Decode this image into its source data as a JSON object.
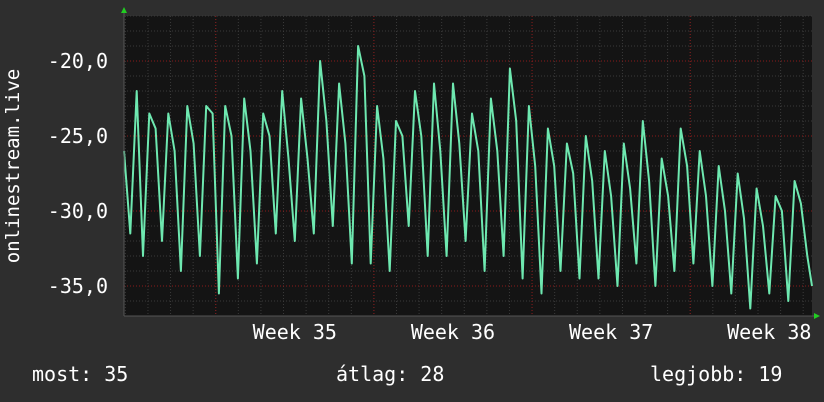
{
  "side_label": "onlinestream.live",
  "colors": {
    "background": "#2e2e2e",
    "plot_background": "#141414",
    "line": "#6ee8b0",
    "grid_major": "#8a1a1a",
    "grid_minor": "#3a3a3a",
    "arrow": "#22cc22",
    "text": "#ffffff"
  },
  "footer": {
    "now": "most: 35",
    "avg": "átlag: 28",
    "best": "legjobb: 19"
  },
  "chart_data": {
    "type": "line",
    "title": "",
    "xlabel": "",
    "ylabel": "onlinestream.live",
    "x_tick_labels": [
      "Week 35",
      "Week 36",
      "Week 37",
      "Week 38"
    ],
    "y_tick_labels": [
      "-20,0",
      "-25,0",
      "-30,0",
      "-35,0"
    ],
    "y_ticks": [
      -20,
      -25,
      -30,
      -35
    ],
    "ylim": [
      -37,
      -17
    ],
    "xlim": [
      34.42,
      38.77
    ],
    "grid": true,
    "series": [
      {
        "name": "",
        "x": [
          34.42,
          34.46,
          34.5,
          34.54,
          34.58,
          34.62,
          34.66,
          34.7,
          34.74,
          34.78,
          34.82,
          34.86,
          34.9,
          34.94,
          34.98,
          35.02,
          35.06,
          35.1,
          35.14,
          35.18,
          35.22,
          35.26,
          35.3,
          35.34,
          35.38,
          35.42,
          35.46,
          35.5,
          35.54,
          35.58,
          35.62,
          35.66,
          35.7,
          35.74,
          35.78,
          35.82,
          35.86,
          35.9,
          35.94,
          35.98,
          36.02,
          36.06,
          36.1,
          36.14,
          36.18,
          36.22,
          36.26,
          36.3,
          36.34,
          36.38,
          36.42,
          36.46,
          36.5,
          36.54,
          36.58,
          36.62,
          36.66,
          36.7,
          36.74,
          36.78,
          36.82,
          36.86,
          36.9,
          36.94,
          36.98,
          37.02,
          37.06,
          37.1,
          37.14,
          37.18,
          37.22,
          37.26,
          37.3,
          37.34,
          37.38,
          37.42,
          37.46,
          37.5,
          37.54,
          37.58,
          37.62,
          37.66,
          37.7,
          37.74,
          37.78,
          37.82,
          37.86,
          37.9,
          37.94,
          37.98,
          38.02,
          38.06,
          38.1,
          38.14,
          38.18,
          38.22,
          38.26,
          38.3,
          38.34,
          38.38,
          38.42,
          38.46,
          38.5,
          38.54,
          38.58,
          38.62,
          38.66,
          38.7,
          38.74,
          38.77
        ],
        "y": [
          -26,
          -31.5,
          -22,
          -33,
          -23.5,
          -24.5,
          -32,
          -23.5,
          -26,
          -34,
          -23,
          -25.5,
          -33,
          -23,
          -23.5,
          -35.5,
          -23,
          -25,
          -34.5,
          -22.5,
          -26,
          -33.5,
          -23.5,
          -25,
          -31.5,
          -22,
          -26.5,
          -32,
          -22.5,
          -26.5,
          -31.5,
          -20,
          -24,
          -31,
          -21.5,
          -25.5,
          -33.5,
          -19,
          -21,
          -33.5,
          -23,
          -26.5,
          -34,
          -24,
          -25,
          -31,
          -22,
          -25,
          -33,
          -21.5,
          -26,
          -33,
          -21.5,
          -25.5,
          -32,
          -23.5,
          -26,
          -34,
          -22.5,
          -26,
          -33,
          -20.5,
          -24,
          -34.5,
          -23,
          -27,
          -35.5,
          -24.5,
          -27,
          -34,
          -25.5,
          -27.5,
          -34.5,
          -25,
          -28,
          -34.5,
          -26,
          -29,
          -35,
          -25.5,
          -28.5,
          -33.5,
          -24,
          -28,
          -35,
          -26.5,
          -29,
          -34,
          -24.5,
          -27,
          -33.5,
          -26,
          -29,
          -35,
          -27,
          -30,
          -35.5,
          -27.5,
          -30.5,
          -36.5,
          -28.5,
          -31,
          -35.5,
          -29,
          -30,
          -36,
          -28,
          -29.5,
          -33,
          -35
        ]
      }
    ]
  }
}
